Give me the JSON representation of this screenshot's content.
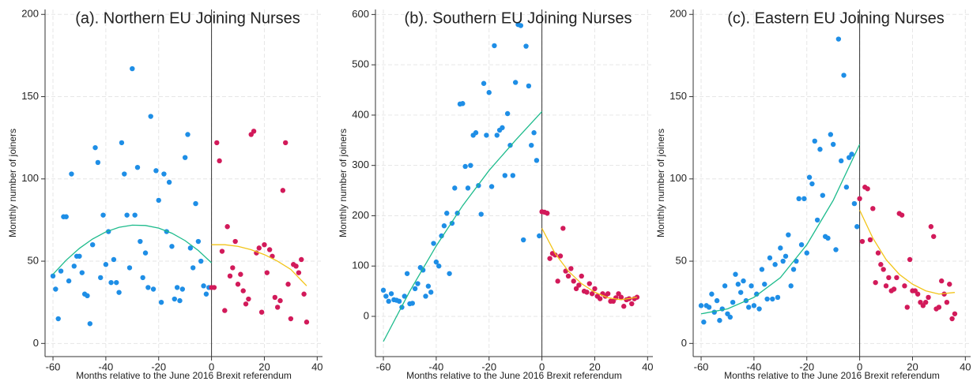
{
  "chart_data": [
    {
      "type": "scatter",
      "title": "(a). Northern EU Joining Nurses",
      "x_label": "Months relative to the June 2016 Brexit referendum",
      "y_label": "Monthly number of joiners",
      "xlim": [
        -63,
        42
      ],
      "ylim": [
        -8,
        203
      ],
      "xticks": [
        -60,
        -40,
        -20,
        0,
        20,
        40
      ],
      "yticks": [
        0,
        50,
        100,
        150,
        200
      ],
      "grid": true,
      "vline": 0,
      "series": [
        {
          "style": "markers",
          "color": "#1e8ee6",
          "x": [
            -60,
            -59,
            -58,
            -57,
            -56,
            -55,
            -54,
            -53,
            -52,
            -51,
            -50,
            -49,
            -48,
            -47,
            -46,
            -45,
            -44,
            -43,
            -42,
            -41,
            -40,
            -39,
            -38,
            -37,
            -36,
            -35,
            -34,
            -33,
            -32,
            -31,
            -30,
            -29,
            -28,
            -27,
            -26,
            -25,
            -24,
            -23,
            -22,
            -21,
            -20,
            -19,
            -18,
            -17,
            -16,
            -15,
            -14,
            -13,
            -12,
            -11,
            -10,
            -9,
            -8,
            -7,
            -6,
            -5,
            -4,
            -3,
            -2,
            -1
          ],
          "values": [
            41,
            33,
            15,
            44,
            77,
            77,
            38,
            103,
            47,
            53,
            53,
            43,
            30,
            29,
            12,
            60,
            119,
            110,
            40,
            78,
            48,
            68,
            37,
            51,
            37,
            31,
            122,
            103,
            78,
            46,
            167,
            78,
            107,
            62,
            40,
            55,
            34,
            138,
            33,
            105,
            87,
            25,
            103,
            68,
            98,
            59,
            27,
            34,
            26,
            33,
            113,
            127,
            58,
            46,
            85,
            62,
            50,
            35,
            30,
            34
          ]
        },
        {
          "style": "markers",
          "color": "#d21a5a",
          "x": [
            0,
            1,
            2,
            3,
            4,
            5,
            6,
            7,
            8,
            9,
            10,
            11,
            12,
            13,
            14,
            15,
            16,
            17,
            18,
            19,
            20,
            21,
            22,
            23,
            24,
            25,
            26,
            27,
            28,
            29,
            30,
            31,
            32,
            33,
            34,
            35,
            36
          ],
          "values": [
            34,
            34,
            122,
            111,
            56,
            20,
            71,
            41,
            46,
            62,
            36,
            42,
            32,
            24,
            27,
            127,
            129,
            55,
            58,
            19,
            60,
            43,
            57,
            53,
            28,
            22,
            26,
            93,
            122,
            36,
            15,
            48,
            47,
            43,
            51,
            30,
            13
          ]
        },
        {
          "style": "line",
          "color": "#1dbb8c",
          "x": [
            -60,
            -55,
            -50,
            -45,
            -40,
            -35,
            -30,
            -25,
            -20,
            -15,
            -10,
            -5,
            0
          ],
          "values": [
            42,
            50.6,
            57.8,
            63.5,
            67.8,
            70.6,
            71.9,
            71.7,
            70.1,
            67,
            62.5,
            56.5,
            49
          ]
        },
        {
          "style": "line",
          "color": "#f2c418",
          "x": [
            0,
            5,
            10,
            15,
            20,
            25,
            30,
            36
          ],
          "values": [
            60,
            60,
            59,
            57,
            54,
            50,
            45,
            35
          ]
        }
      ]
    },
    {
      "type": "scatter",
      "title": "(b). Southern EU Joining Nurses",
      "x_label": "Months relative to the June 2016 Brexit referendum",
      "y_label": "Monthly number of joiners",
      "xlim": [
        -63,
        42
      ],
      "ylim": [
        -80,
        610
      ],
      "xticks": [
        -60,
        -40,
        -20,
        0,
        20,
        40
      ],
      "yticks": [
        0,
        100,
        200,
        300,
        400,
        500,
        600
      ],
      "grid": true,
      "vline": 0,
      "series": [
        {
          "style": "markers",
          "color": "#1e8ee6",
          "x": [
            -60,
            -59,
            -58,
            -57,
            -56,
            -55,
            -54,
            -53,
            -52,
            -51,
            -50,
            -49,
            -48,
            -47,
            -46,
            -45,
            -44,
            -43,
            -42,
            -41,
            -40,
            -39,
            -38,
            -37,
            -36,
            -35,
            -34,
            -33,
            -32,
            -31,
            -30,
            -29,
            -28,
            -27,
            -26,
            -25,
            -24,
            -23,
            -22,
            -21,
            -20,
            -19,
            -18,
            -17,
            -16,
            -15,
            -14,
            -13,
            -12,
            -11,
            -10,
            -9,
            -8,
            -7,
            -6,
            -5,
            -4,
            -3,
            -2,
            -1
          ],
          "values": [
            52,
            40,
            30,
            45,
            33,
            32,
            30,
            18,
            40,
            85,
            25,
            26,
            55,
            65,
            97,
            92,
            40,
            60,
            48,
            145,
            108,
            100,
            160,
            180,
            205,
            85,
            185,
            255,
            205,
            422,
            423,
            298,
            255,
            300,
            360,
            365,
            260,
            203,
            463,
            360,
            445,
            258,
            538,
            360,
            370,
            375,
            280,
            403,
            340,
            280,
            465,
            580,
            578,
            152,
            537,
            458,
            340,
            365,
            310,
            160
          ]
        },
        {
          "style": "markers",
          "color": "#d21a5a",
          "x": [
            0,
            1,
            2,
            3,
            4,
            5,
            6,
            7,
            8,
            9,
            10,
            11,
            12,
            13,
            14,
            15,
            16,
            17,
            18,
            19,
            20,
            21,
            22,
            23,
            24,
            25,
            26,
            27,
            28,
            29,
            30,
            31,
            32,
            33,
            34,
            35,
            36
          ],
          "values": [
            208,
            207,
            205,
            115,
            125,
            122,
            70,
            120,
            175,
            90,
            80,
            95,
            70,
            55,
            62,
            80,
            50,
            48,
            65,
            45,
            55,
            40,
            35,
            45,
            40,
            45,
            30,
            30,
            37,
            45,
            38,
            20,
            33,
            35,
            25,
            35,
            38
          ]
        },
        {
          "style": "line",
          "color": "#1dbb8c",
          "x": [
            -60,
            -50,
            -40,
            -30,
            -20,
            -10,
            0
          ],
          "values": [
            -50,
            50,
            140,
            220,
            290,
            350,
            407
          ]
        },
        {
          "style": "line",
          "color": "#f2c418",
          "x": [
            0,
            5,
            10,
            15,
            20,
            25,
            30,
            36
          ],
          "values": [
            175,
            125,
            90,
            65,
            48,
            37,
            33,
            38
          ]
        }
      ]
    },
    {
      "type": "scatter",
      "title": "(c). Eastern EU Joining Nurses",
      "x_label": "Months relative to the June 2016 Brexit referendum",
      "y_label": "Monthly number of joiners",
      "xlim": [
        -63,
        42
      ],
      "ylim": [
        -8,
        203
      ],
      "xticks": [
        -60,
        -40,
        -20,
        0,
        20,
        40
      ],
      "yticks": [
        0,
        50,
        100,
        150,
        200
      ],
      "grid": true,
      "vline": 0,
      "series": [
        {
          "style": "markers",
          "color": "#1e8ee6",
          "x": [
            -60,
            -59,
            -58,
            -57,
            -56,
            -55,
            -54,
            -53,
            -52,
            -51,
            -50,
            -49,
            -48,
            -47,
            -46,
            -45,
            -44,
            -43,
            -42,
            -41,
            -40,
            -39,
            -38,
            -37,
            -36,
            -35,
            -34,
            -33,
            -32,
            -31,
            -30,
            -29,
            -28,
            -27,
            -26,
            -25,
            -24,
            -23,
            -22,
            -21,
            -20,
            -19,
            -18,
            -17,
            -16,
            -15,
            -14,
            -13,
            -12,
            -11,
            -10,
            -9,
            -8,
            -7,
            -6,
            -5,
            -4,
            -3,
            -2,
            -1
          ],
          "values": [
            23,
            13,
            23,
            22,
            30,
            19,
            26,
            14,
            21,
            35,
            18,
            16,
            25,
            42,
            36,
            31,
            38,
            26,
            22,
            35,
            23,
            30,
            21,
            45,
            36,
            27,
            52,
            27,
            48,
            28,
            58,
            50,
            53,
            66,
            35,
            45,
            50,
            88,
            60,
            88,
            55,
            101,
            97,
            123,
            75,
            118,
            90,
            65,
            64,
            127,
            121,
            57,
            185,
            111,
            163,
            95,
            113,
            115,
            85,
            71
          ]
        },
        {
          "style": "markers",
          "color": "#d21a5a",
          "x": [
            0,
            1,
            2,
            3,
            4,
            5,
            6,
            7,
            8,
            9,
            10,
            11,
            12,
            13,
            14,
            15,
            16,
            17,
            18,
            19,
            20,
            21,
            22,
            23,
            24,
            25,
            26,
            27,
            28,
            29,
            30,
            31,
            32,
            33,
            34,
            35,
            36
          ],
          "values": [
            88,
            62,
            95,
            94,
            63,
            82,
            37,
            55,
            48,
            45,
            35,
            40,
            32,
            33,
            40,
            79,
            78,
            35,
            22,
            51,
            32,
            32,
            30,
            25,
            23,
            25,
            28,
            71,
            65,
            21,
            22,
            38,
            30,
            25,
            36,
            15,
            18
          ]
        },
        {
          "style": "line",
          "color": "#1dbb8c",
          "x": [
            -60,
            -50,
            -40,
            -30,
            -20,
            -10,
            0
          ],
          "values": [
            18,
            21,
            28,
            40,
            60,
            87,
            121
          ]
        },
        {
          "style": "line",
          "color": "#f2c418",
          "x": [
            0,
            5,
            10,
            15,
            20,
            25,
            30,
            36
          ],
          "values": [
            81,
            64,
            51,
            42,
            36,
            32,
            30,
            31
          ]
        }
      ]
    }
  ]
}
